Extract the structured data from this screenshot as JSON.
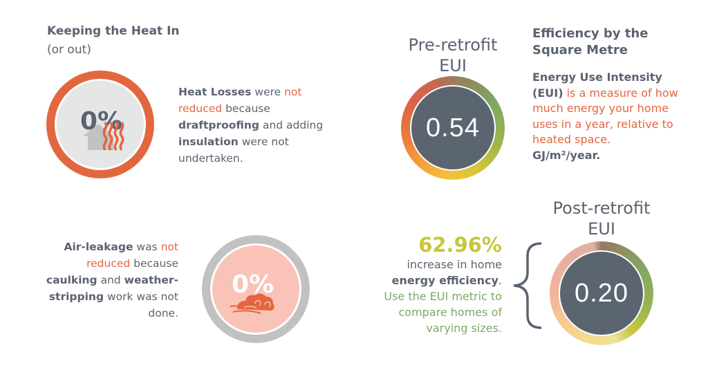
{
  "heat": {
    "title": "Keeping the Heat In",
    "subtitle": "(or out)",
    "percent": "0%",
    "icon": "house-heat-icon",
    "text": [
      "Heat Losses",
      " were ",
      "not reduced",
      " because ",
      "draftproofing",
      " and adding ",
      "insulation",
      " were not undertaken."
    ]
  },
  "air": {
    "percent": "0%",
    "icon": "wind-cloud-icon",
    "text": [
      "Air-leakage",
      " was ",
      "not reduced",
      " because ",
      "caulking",
      " and ",
      "weather-stripping",
      " work was not done."
    ]
  },
  "pre": {
    "title_1": "Pre-retrofit",
    "title_2": "EUI",
    "value": "0.54"
  },
  "post": {
    "title_1": "Post-retrofit",
    "title_2": "EUI",
    "value": "0.20"
  },
  "efficiency": {
    "title_1": "Efficiency by the",
    "title_2": "Square Metre",
    "intro": "Energy Use Intensity (EUI)",
    "desc": " is a measure of how much energy your home uses in a year, relative to heated space.",
    "unit": "GJ/m²/year."
  },
  "increase": {
    "percent": "62.96%",
    "line1": "increase in home",
    "line2": "energy efficiency",
    "line2_end": ".",
    "tip": "Use the EUI metric to compare homes of varying sizes."
  },
  "colors": {
    "accent_orange": "#e4653f",
    "text_gray": "#5b6370",
    "lime": "#c7c63a",
    "green": "#7fa869",
    "gauge_center": "#5b6570"
  }
}
